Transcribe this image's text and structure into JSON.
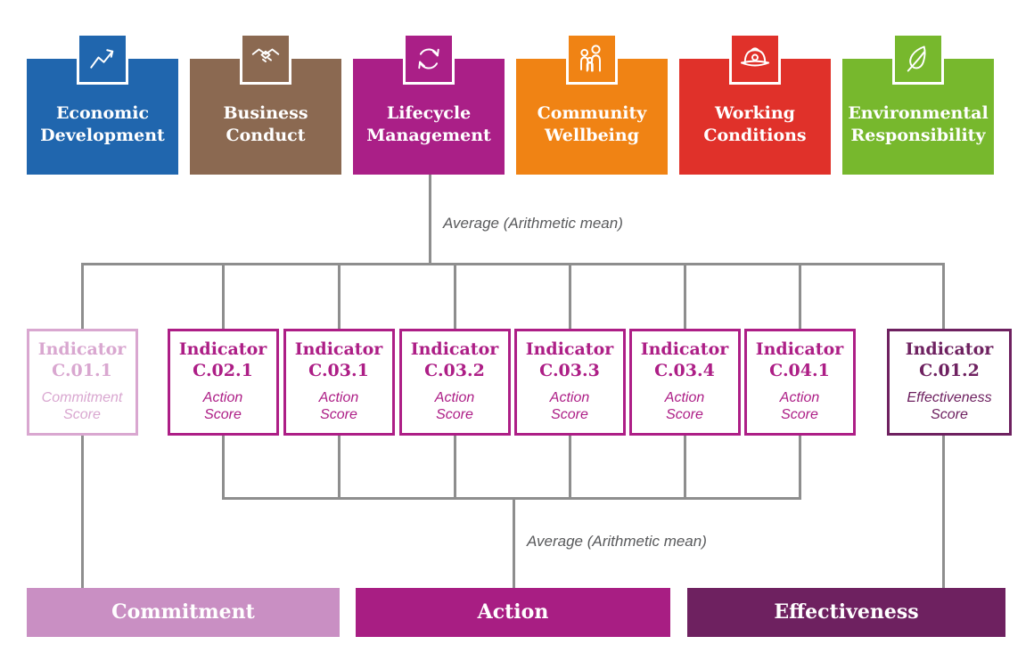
{
  "connector_color": "#8e8e8e",
  "labels": {
    "average_top": "Average (Arithmetic mean)",
    "average_bottom": "Average (Arithmetic mean)"
  },
  "top_categories": [
    {
      "line1": "Economic",
      "line2": "Development",
      "color": "#2066ae",
      "icon": "trend-chart-icon"
    },
    {
      "line1": "Business",
      "line2": "Conduct",
      "color": "#8b6951",
      "icon": "handshake-icon"
    },
    {
      "line1": "Lifecycle",
      "line2": "Management",
      "color": "#aa1f87",
      "icon": "cycle-arrows-icon"
    },
    {
      "line1": "Community",
      "line2": "Wellbeing",
      "color": "#f08314",
      "icon": "family-icon"
    },
    {
      "line1": "Working",
      "line2": "Conditions",
      "color": "#e0312a",
      "icon": "hard-hat-icon"
    },
    {
      "line1": "Environmental",
      "line2": "Responsibility",
      "color": "#77b82d",
      "icon": "leaf-icon"
    }
  ],
  "indicators": [
    {
      "title_line1": "Indicator",
      "title_line2": "C.01.1",
      "subtitle_line1": "Commitment",
      "subtitle_line2": "Score",
      "color": "#d9a7d0"
    },
    {
      "title_line1": "Indicator",
      "title_line2": "C.02.1",
      "subtitle_line1": "Action",
      "subtitle_line2": "Score",
      "color": "#ad1e86"
    },
    {
      "title_line1": "Indicator",
      "title_line2": "C.03.1",
      "subtitle_line1": "Action",
      "subtitle_line2": "Score",
      "color": "#ad1e86"
    },
    {
      "title_line1": "Indicator",
      "title_line2": "C.03.2",
      "subtitle_line1": "Action",
      "subtitle_line2": "Score",
      "color": "#ad1e86"
    },
    {
      "title_line1": "Indicator",
      "title_line2": "C.03.3",
      "subtitle_line1": "Action",
      "subtitle_line2": "Score",
      "color": "#ad1e86"
    },
    {
      "title_line1": "Indicator",
      "title_line2": "C.03.4",
      "subtitle_line1": "Action",
      "subtitle_line2": "Score",
      "color": "#ad1e86"
    },
    {
      "title_line1": "Indicator",
      "title_line2": "C.04.1",
      "subtitle_line1": "Action",
      "subtitle_line2": "Score",
      "color": "#ad1e86"
    },
    {
      "title_line1": "Indicator",
      "title_line2": "C.01.2",
      "subtitle_line1": "Effectiveness",
      "subtitle_line2": "Score",
      "color": "#6e2160"
    }
  ],
  "bottom_bars": [
    {
      "label": "Commitment",
      "color": "#c98fc3"
    },
    {
      "label": "Action",
      "color": "#a81e83"
    },
    {
      "label": "Effectiveness",
      "color": "#6e2160"
    }
  ]
}
